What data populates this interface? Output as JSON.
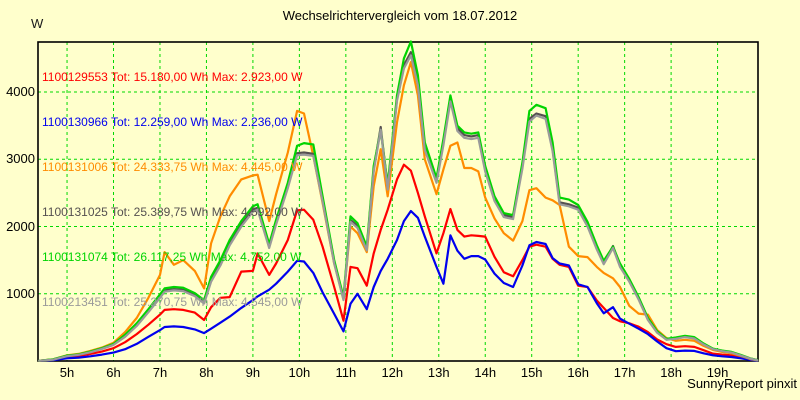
{
  "page": {
    "title": "Wechselrichtervergleich vom 18.07.2012",
    "unit_label": "W",
    "footer": "SunnyReport pinxit",
    "background_color": "#ffffcc",
    "grid_color": "#00d800",
    "axis_color": "#000000"
  },
  "chart_data": {
    "type": "line",
    "title": "Wechselrichtervergleich vom 18.07.2012",
    "xlabel": "",
    "ylabel": "W",
    "x_unit": "hour of day",
    "xlim": [
      4.375,
      19.87
    ],
    "ylim": [
      0,
      4744
    ],
    "grid": true,
    "legend_position": "top-left inside plot",
    "xticks": {
      "values": [
        5,
        6,
        7,
        8,
        9,
        10,
        11,
        12,
        13,
        14,
        15,
        16,
        17,
        18,
        19
      ],
      "labels": [
        "5h",
        "6h",
        "7h",
        "8h",
        "9h",
        "10h",
        "11h",
        "12h",
        "13h",
        "14h",
        "15h",
        "16h",
        "17h",
        "18h",
        "19h"
      ]
    },
    "yticks": [
      1000,
      2000,
      3000,
      4000
    ],
    "hours": [
      4.4,
      4.7,
      5.0,
      5.25,
      5.5,
      5.75,
      6.0,
      6.25,
      6.5,
      6.75,
      7.0,
      7.1,
      7.3,
      7.5,
      7.75,
      7.95,
      8.1,
      8.3,
      8.5,
      8.75,
      9.0,
      9.1,
      9.35,
      9.5,
      9.75,
      9.95,
      10.1,
      10.3,
      10.5,
      10.75,
      10.95,
      11.1,
      11.25,
      11.45,
      11.6,
      11.75,
      11.9,
      12.1,
      12.25,
      12.4,
      12.55,
      12.7,
      12.95,
      13.1,
      13.25,
      13.4,
      13.55,
      13.7,
      13.85,
      14.0,
      14.2,
      14.4,
      14.6,
      14.8,
      14.95,
      15.1,
      15.3,
      15.45,
      15.6,
      15.8,
      16.0,
      16.2,
      16.4,
      16.55,
      16.75,
      16.9,
      17.1,
      17.3,
      17.5,
      17.7,
      17.9,
      18.1,
      18.3,
      18.5,
      18.7,
      18.9,
      19.1,
      19.3,
      19.5,
      19.7,
      19.85
    ],
    "series": [
      {
        "serial": "1100129553",
        "total_wh": "15.180,00",
        "max_w": "2.923,00",
        "legend": "1100129553 Tot: 15.180,00 Wh Max: 2.923,00 W",
        "color": "#ff0000",
        "values": [
          5,
          20,
          60,
          75,
          105,
          140,
          190,
          280,
          400,
          540,
          690,
          760,
          770,
          760,
          720,
          610,
          800,
          940,
          950,
          1330,
          1340,
          1600,
          1280,
          1450,
          1800,
          2240,
          2250,
          2100,
          1700,
          1100,
          600,
          1400,
          1380,
          1120,
          1600,
          1950,
          2250,
          2700,
          2920,
          2830,
          2500,
          2150,
          1600,
          1900,
          2260,
          1950,
          1850,
          1870,
          1860,
          1850,
          1550,
          1320,
          1260,
          1500,
          1700,
          1730,
          1700,
          1520,
          1430,
          1400,
          1120,
          1100,
          900,
          790,
          640,
          590,
          560,
          510,
          430,
          320,
          250,
          210,
          220,
          210,
          160,
          110,
          95,
          85,
          55,
          25,
          10
        ]
      },
      {
        "serial": "1100130966",
        "total_wh": "12.259,00",
        "max_w": "2.236,00",
        "legend": "1100130966 Tot: 12.259,00 Wh Max: 2.236,00 W",
        "color": "#0000ee",
        "values": [
          5,
          12,
          40,
          50,
          70,
          95,
          125,
          175,
          255,
          360,
          460,
          505,
          515,
          505,
          470,
          415,
          480,
          570,
          660,
          790,
          905,
          960,
          1060,
          1150,
          1330,
          1490,
          1480,
          1310,
          1020,
          700,
          440,
          850,
          1000,
          770,
          1100,
          1340,
          1520,
          1800,
          2080,
          2230,
          2130,
          1850,
          1400,
          1150,
          1870,
          1640,
          1520,
          1560,
          1560,
          1510,
          1300,
          1160,
          1100,
          1420,
          1720,
          1770,
          1740,
          1530,
          1450,
          1420,
          1140,
          1100,
          860,
          710,
          800,
          630,
          555,
          480,
          400,
          290,
          190,
          145,
          155,
          150,
          115,
          85,
          70,
          60,
          40,
          18,
          5
        ]
      },
      {
        "serial": "1100131006",
        "total_wh": "24.333,75",
        "max_w": "4.445,00",
        "legend": "1100131006 Tot: 24.333,75 Wh Max: 4.445,00 W",
        "color": "#ff8c00",
        "values": [
          5,
          25,
          85,
          105,
          150,
          200,
          270,
          430,
          640,
          940,
          1280,
          1620,
          1430,
          1500,
          1340,
          1080,
          1750,
          2150,
          2450,
          2700,
          2760,
          2770,
          2080,
          2480,
          3100,
          3720,
          3680,
          3050,
          2350,
          1450,
          930,
          2000,
          1900,
          1620,
          2600,
          3150,
          2450,
          3550,
          4100,
          4445,
          3950,
          3000,
          2480,
          2850,
          3200,
          3250,
          2870,
          2870,
          2820,
          2430,
          2120,
          1900,
          1790,
          2080,
          2540,
          2570,
          2430,
          2390,
          2320,
          1700,
          1560,
          1545,
          1400,
          1310,
          1230,
          1100,
          820,
          705,
          690,
          460,
          340,
          300,
          315,
          300,
          225,
          165,
          135,
          115,
          75,
          30,
          10
        ]
      },
      {
        "serial": "1100131025",
        "total_wh": "25.389,75",
        "max_w": "4.592,00",
        "legend": "1100131025 Tot: 25.389,75 Wh Max: 4.592,00 W",
        "color": "#555050",
        "values": [
          5,
          22,
          75,
          95,
          135,
          185,
          245,
          370,
          530,
          740,
          960,
          1050,
          1070,
          1060,
          985,
          875,
          1200,
          1450,
          1750,
          2030,
          2250,
          2280,
          1700,
          2060,
          2600,
          3090,
          3100,
          3080,
          2400,
          1470,
          920,
          2100,
          2010,
          1670,
          2850,
          3480,
          2580,
          3900,
          4400,
          4592,
          4150,
          3180,
          2680,
          3250,
          3900,
          3460,
          3360,
          3340,
          3360,
          2860,
          2410,
          2170,
          2140,
          2900,
          3600,
          3680,
          3640,
          3150,
          2360,
          2330,
          2280,
          2030,
          1690,
          1460,
          1710,
          1420,
          1200,
          930,
          625,
          430,
          320,
          340,
          365,
          345,
          250,
          180,
          150,
          130,
          85,
          38,
          14
        ]
      },
      {
        "serial": "1100131074",
        "total_wh": "26.117,25",
        "max_w": "4.752,00",
        "legend": "1100131074 Tot: 26.117,25 Wh Max: 4.752,00 W",
        "color": "#00d400",
        "values": [
          5,
          25,
          80,
          100,
          140,
          190,
          255,
          390,
          560,
          770,
          990,
          1080,
          1100,
          1090,
          1010,
          905,
          1250,
          1500,
          1800,
          2080,
          2300,
          2330,
          1740,
          2100,
          2650,
          3200,
          3240,
          3220,
          2450,
          1500,
          950,
          2150,
          2050,
          1700,
          2900,
          3430,
          2620,
          3950,
          4500,
          4752,
          4250,
          3250,
          2720,
          3300,
          3950,
          3500,
          3400,
          3380,
          3400,
          2900,
          2450,
          2200,
          2170,
          2950,
          3720,
          3810,
          3760,
          3250,
          2430,
          2400,
          2320,
          2070,
          1720,
          1490,
          1700,
          1450,
          1220,
          950,
          640,
          440,
          330,
          350,
          375,
          355,
          260,
          185,
          155,
          135,
          90,
          40,
          15
        ]
      },
      {
        "serial": "1100213451",
        "total_wh": "25.270,75",
        "max_w": "4.545,00",
        "legend": "1100213451 Tot: 25.270,75 Wh Max: 4.545,00 W",
        "color": "#9a9a9a",
        "values": [
          4,
          20,
          72,
          92,
          130,
          180,
          240,
          360,
          520,
          725,
          940,
          1030,
          1050,
          1040,
          965,
          855,
          1180,
          1420,
          1720,
          2000,
          2220,
          2250,
          1680,
          2030,
          2570,
          3060,
          3070,
          3050,
          2370,
          1450,
          905,
          2070,
          1980,
          1645,
          2820,
          3440,
          2550,
          3870,
          4350,
          4545,
          4100,
          3140,
          2650,
          3210,
          3860,
          3420,
          3320,
          3300,
          3320,
          2820,
          2380,
          2140,
          2110,
          2860,
          3560,
          3650,
          3600,
          3120,
          2330,
          2300,
          2250,
          2000,
          1660,
          1440,
          1680,
          1400,
          1180,
          915,
          610,
          420,
          315,
          330,
          355,
          335,
          245,
          175,
          145,
          125,
          80,
          35,
          12
        ]
      }
    ]
  }
}
